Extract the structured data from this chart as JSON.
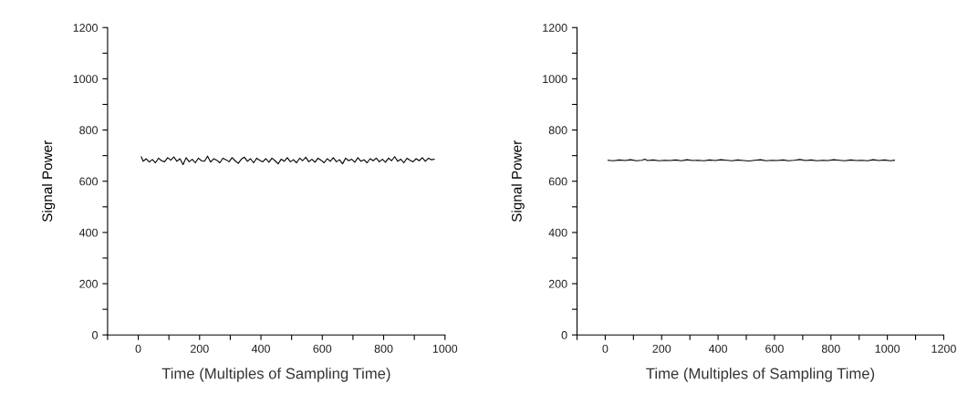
{
  "chart_data": [
    {
      "type": "line",
      "xlabel": "Time (Multiples of Sampling Time)",
      "ylabel": "Signal Power",
      "xlim": [
        -100,
        1000
      ],
      "ylim": [
        0,
        1200
      ],
      "xticks": [
        {
          "value": -100,
          "label": null
        },
        0,
        {
          "value": 100,
          "label": null
        },
        200,
        {
          "value": 300,
          "label": null
        },
        400,
        {
          "value": 500,
          "label": null
        },
        600,
        {
          "value": 700,
          "label": null
        },
        800,
        {
          "value": 900,
          "label": null
        },
        1000
      ],
      "yticks": [
        0,
        {
          "value": 100,
          "label": null
        },
        200,
        {
          "value": 300,
          "label": null
        },
        400,
        {
          "value": 500,
          "label": null
        },
        600,
        {
          "value": 700,
          "label": null
        },
        800,
        {
          "value": 900,
          "label": null
        },
        1000,
        {
          "value": 1100,
          "label": null
        },
        1200
      ],
      "grid": false,
      "legend": false,
      "series": [
        {
          "color": "#000000",
          "x": [
            10,
            16,
            26,
            36,
            46,
            56,
            66,
            76,
            86,
            96,
            106,
            116,
            126,
            136,
            146,
            156,
            166,
            176,
            186,
            196,
            206,
            216,
            226,
            236,
            246,
            256,
            266,
            276,
            286,
            296,
            306,
            316,
            326,
            336,
            346,
            356,
            366,
            376,
            386,
            396,
            406,
            416,
            426,
            436,
            446,
            456,
            466,
            476,
            486,
            496,
            506,
            516,
            526,
            536,
            546,
            556,
            566,
            576,
            586,
            596,
            606,
            616,
            626,
            636,
            646,
            656,
            666,
            676,
            686,
            696,
            706,
            716,
            726,
            736,
            746,
            756,
            766,
            776,
            786,
            796,
            806,
            816,
            826,
            836,
            846,
            856,
            866,
            876,
            886,
            896,
            906,
            916,
            926,
            936,
            946,
            956,
            965
          ],
          "values": [
            695,
            678,
            688,
            675,
            685,
            672,
            690,
            680,
            676,
            692,
            682,
            695,
            678,
            688,
            665,
            692,
            676,
            686,
            672,
            690,
            680,
            678,
            698,
            675,
            688,
            682,
            672,
            690,
            684,
            676,
            692,
            680,
            670,
            686,
            694,
            678,
            688,
            672,
            690,
            682,
            676,
            688,
            674,
            690,
            680,
            668,
            686,
            678,
            692,
            676,
            684,
            672,
            690,
            680,
            694,
            676,
            686,
            674,
            690,
            682,
            672,
            688,
            678,
            692,
            676,
            684,
            668,
            690,
            680,
            686,
            674,
            692,
            678,
            684,
            672,
            688,
            680,
            690,
            676,
            686,
            674,
            690,
            680,
            696,
            678,
            686,
            672,
            690,
            682,
            676,
            688,
            680,
            692,
            678,
            690,
            684,
            686
          ]
        }
      ]
    },
    {
      "type": "line",
      "xlabel": "Time (Multiples of Sampling Time)",
      "ylabel": "Signal Power",
      "xlim": [
        -100,
        1200
      ],
      "ylim": [
        0,
        1200
      ],
      "xticks": [
        {
          "value": -100,
          "label": null
        },
        0,
        {
          "value": 100,
          "label": null
        },
        200,
        {
          "value": 300,
          "label": null
        },
        400,
        {
          "value": 500,
          "label": null
        },
        600,
        {
          "value": 700,
          "label": null
        },
        800,
        {
          "value": 900,
          "label": null
        },
        1000,
        {
          "value": 1100,
          "label": null
        },
        1200
      ],
      "yticks": [
        0,
        {
          "value": 100,
          "label": null
        },
        200,
        {
          "value": 300,
          "label": null
        },
        400,
        {
          "value": 500,
          "label": null
        },
        600,
        {
          "value": 700,
          "label": null
        },
        800,
        {
          "value": 900,
          "label": null
        },
        1000,
        {
          "value": 1100,
          "label": null
        },
        1200
      ],
      "grid": false,
      "legend": false,
      "series": [
        {
          "color": "#000000",
          "x": [
            10,
            30,
            50,
            70,
            90,
            110,
            130,
            140,
            150,
            170,
            190,
            210,
            230,
            250,
            270,
            290,
            310,
            330,
            350,
            370,
            390,
            410,
            430,
            450,
            470,
            490,
            510,
            530,
            550,
            570,
            590,
            610,
            630,
            650,
            670,
            690,
            710,
            730,
            750,
            770,
            790,
            810,
            830,
            850,
            870,
            890,
            910,
            930,
            950,
            970,
            990,
            1010,
            1025
          ],
          "values": [
            682,
            680,
            683,
            681,
            684,
            680,
            682,
            686,
            681,
            683,
            680,
            682,
            681,
            683,
            680,
            684,
            681,
            682,
            680,
            683,
            681,
            684,
            682,
            680,
            683,
            681,
            679,
            682,
            684,
            680,
            682,
            681,
            683,
            680,
            682,
            685,
            681,
            683,
            680,
            682,
            681,
            684,
            682,
            680,
            683,
            681,
            682,
            680,
            684,
            681,
            683,
            680,
            682
          ]
        }
      ]
    }
  ]
}
